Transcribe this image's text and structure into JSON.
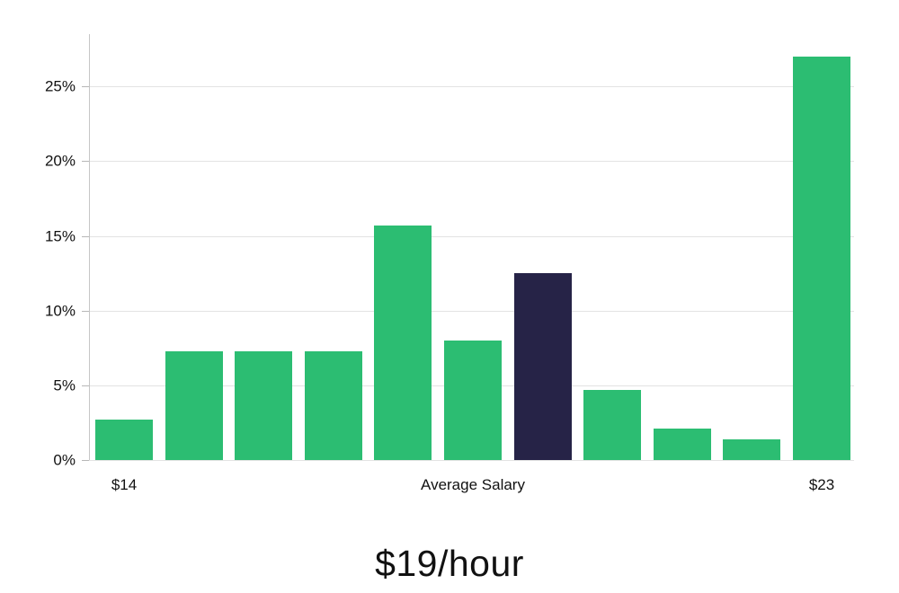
{
  "chart_data": {
    "type": "bar",
    "title": "$19/hour",
    "values": [
      2.7,
      7.3,
      7.3,
      7.3,
      15.7,
      8.0,
      12.5,
      4.7,
      2.1,
      1.4,
      27.0
    ],
    "highlight_index": 6,
    "x_axis_labels": [
      {
        "text": "$14",
        "bar_index": 0
      },
      {
        "text": "Average Salary",
        "bar_index": 5
      },
      {
        "text": "$23",
        "bar_index": 10
      }
    ],
    "yticks": [
      0,
      5,
      10,
      15,
      20,
      25
    ],
    "ytick_labels": [
      "0%",
      "5%",
      "10%",
      "15%",
      "20%",
      "25%"
    ],
    "ylim": [
      0,
      28.5
    ],
    "grid": true,
    "legend": false,
    "colors": {
      "bar": "#2cbd72",
      "highlight_bar": "#262347",
      "gridline": "#e3e3e3",
      "axis_line": "#c6c6c6",
      "tick_mark": "#b7b7b7",
      "label_text": "#111111"
    }
  }
}
